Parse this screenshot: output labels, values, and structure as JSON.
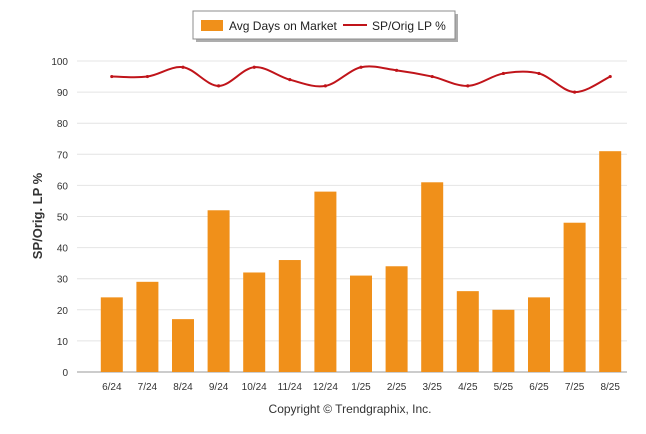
{
  "chart_data": {
    "type": "bar",
    "categories": [
      "6/24",
      "7/24",
      "8/24",
      "9/24",
      "10/24",
      "11/24",
      "12/24",
      "1/25",
      "2/25",
      "3/25",
      "4/25",
      "5/25",
      "6/25",
      "7/25",
      "8/25"
    ],
    "series": [
      {
        "name": "Avg Days on Market",
        "type": "bar",
        "color": "#f0901a",
        "values": [
          24,
          29,
          17,
          52,
          32,
          36,
          58,
          31,
          34,
          61,
          26,
          20,
          24,
          48,
          71
        ]
      },
      {
        "name": "SP/Orig LP %",
        "type": "line",
        "color": "#c0141a",
        "values": [
          95,
          95,
          98,
          92,
          98,
          94,
          92,
          98,
          97,
          95,
          92,
          96,
          96,
          90,
          95
        ]
      }
    ],
    "ylabel": "SP/Orig. LP %",
    "ylim": [
      0,
      100
    ],
    "yticks": [
      0,
      10,
      20,
      30,
      40,
      50,
      60,
      70,
      80,
      90,
      100
    ],
    "grid": true,
    "legend": "top-center"
  },
  "footer": {
    "copyright": "Copyright © Trendgraphix, Inc."
  }
}
